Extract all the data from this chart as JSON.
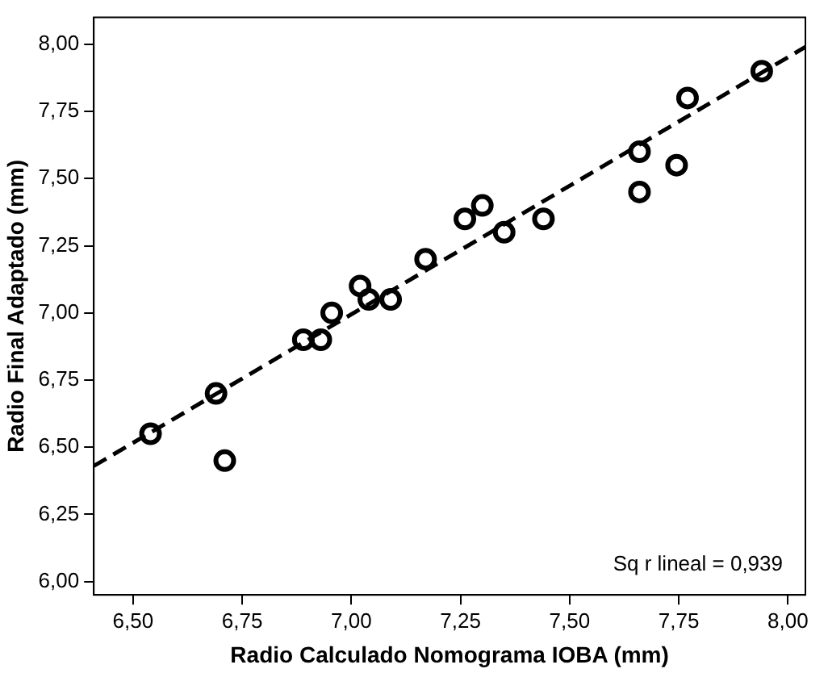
{
  "chart_data": {
    "type": "scatter",
    "xlabel": "Radio Calculado Nomograma IOBA (mm)",
    "ylabel": "Radio Final Adaptado (mm)",
    "annotations": [
      "Sq r lineal = 0,939"
    ],
    "xlim": [
      6.41,
      8.04
    ],
    "ylim": [
      5.95,
      8.1
    ],
    "xticks": [
      {
        "value": 6.5,
        "label": "6,50"
      },
      {
        "value": 6.75,
        "label": "6,75"
      },
      {
        "value": 7,
        "label": "7,00"
      },
      {
        "value": 7.25,
        "label": "7,25"
      },
      {
        "value": 7.5,
        "label": "7,50"
      },
      {
        "value": 7.75,
        "label": "7,75"
      },
      {
        "value": 8,
        "label": "8,00"
      }
    ],
    "yticks": [
      {
        "value": 6,
        "label": "6,00"
      },
      {
        "value": 6.25,
        "label": "6,25"
      },
      {
        "value": 6.5,
        "label": "6,50"
      },
      {
        "value": 6.75,
        "label": "6,75"
      },
      {
        "value": 7,
        "label": "7,00"
      },
      {
        "value": 7.25,
        "label": "7,25"
      },
      {
        "value": 7.5,
        "label": "7,50"
      },
      {
        "value": 7.75,
        "label": "7,75"
      },
      {
        "value": 8,
        "label": "8,00"
      }
    ],
    "grid": false,
    "legend": false,
    "marker": "circle",
    "series": [
      {
        "color": "#000000",
        "x": [
          6.54,
          6.69,
          6.71,
          6.89,
          6.93,
          6.955,
          7.02,
          7.04,
          7.09,
          7.17,
          7.26,
          7.3,
          7.35,
          7.44,
          7.66,
          7.66,
          7.745,
          7.77,
          7.94
        ],
        "values": [
          6.55,
          6.7,
          6.45,
          6.9,
          6.9,
          7.0,
          7.1,
          7.05,
          7.05,
          7.2,
          7.35,
          7.4,
          7.3,
          7.35,
          7.6,
          7.45,
          7.55,
          7.8,
          7.9
        ]
      },
      {
        "type": "line",
        "color": "#000000",
        "line_style": "dashed",
        "marker": "none",
        "x": [
          6.41,
          8.04
        ],
        "values": [
          6.43,
          7.99
        ]
      }
    ]
  }
}
